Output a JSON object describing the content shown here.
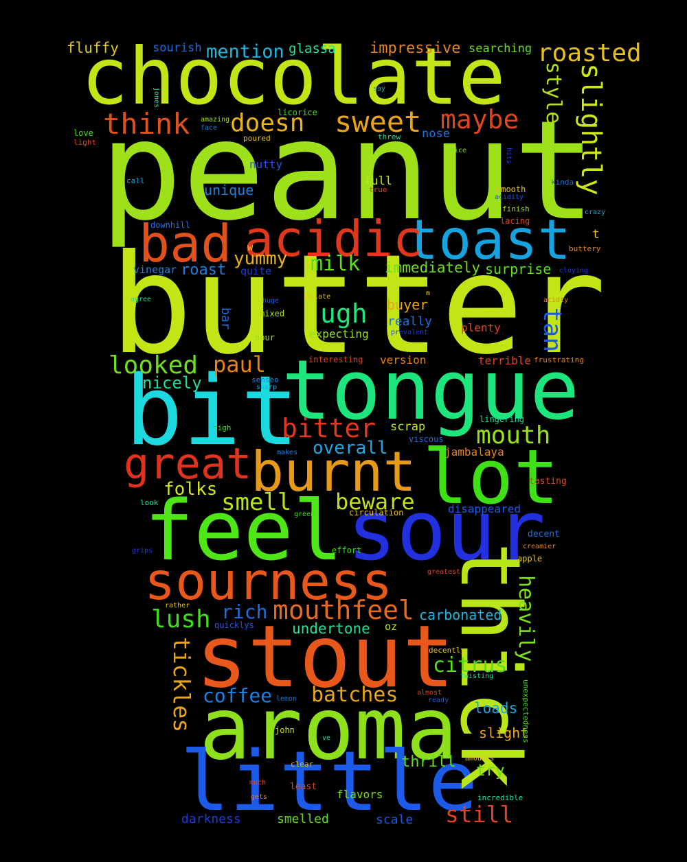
{
  "words": [
    {
      "text": "peanut",
      "color": "#9ee01a"
    },
    {
      "text": "butter",
      "color": "#c3e516"
    },
    {
      "text": "chocolate",
      "color": "#c3e516"
    },
    {
      "text": "tongue",
      "color": "#1de67c"
    },
    {
      "text": "bit",
      "color": "#1cd9e0"
    },
    {
      "text": "feel",
      "color": "#4ee617"
    },
    {
      "text": "sour",
      "color": "#2230e0"
    },
    {
      "text": "stout",
      "color": "#e8581a"
    },
    {
      "text": "aroma",
      "color": "#8fe01c"
    },
    {
      "text": "little",
      "color": "#1c5ae8"
    },
    {
      "text": "thick",
      "color": "#b9e617"
    },
    {
      "text": "sourness",
      "color": "#e8581a"
    },
    {
      "text": "toast",
      "color": "#17a3e0"
    },
    {
      "text": "acidic",
      "color": "#e0381c"
    },
    {
      "text": "bad",
      "color": "#e0521a"
    },
    {
      "text": "burnt",
      "color": "#e89a17"
    },
    {
      "text": "lot",
      "color": "#40e017"
    },
    {
      "text": "great",
      "color": "#e0321c"
    },
    {
      "text": "mouthfeel",
      "color": "#e86a1a"
    },
    {
      "text": "sweet",
      "color": "#e8a51a"
    },
    {
      "text": "think",
      "color": "#e0521a"
    },
    {
      "text": "doesn",
      "color": "#e8b41a"
    },
    {
      "text": "maybe",
      "color": "#e0451c"
    },
    {
      "text": "roasted",
      "color": "#e8c21a"
    },
    {
      "text": "slightly",
      "color": "#cde617"
    },
    {
      "text": "style",
      "color": "#b2e017"
    },
    {
      "text": "mention",
      "color": "#1cb8e0"
    },
    {
      "text": "impressive",
      "color": "#e8841a"
    },
    {
      "text": "fluffy",
      "color": "#e0c81a"
    },
    {
      "text": "sourish",
      "color": "#1c6ae0"
    },
    {
      "text": "glassa",
      "color": "#1ce0a0"
    },
    {
      "text": "searching",
      "color": "#69e017"
    },
    {
      "text": "ugh",
      "color": "#1de67c"
    },
    {
      "text": "milk",
      "color": "#5de017"
    },
    {
      "text": "yummy",
      "color": "#e8b41a"
    },
    {
      "text": "roast",
      "color": "#1c82e0"
    },
    {
      "text": "tan",
      "color": "#1c5ae8"
    },
    {
      "text": "looked",
      "color": "#6ee017"
    },
    {
      "text": "paul",
      "color": "#e8821a"
    },
    {
      "text": "bitter",
      "color": "#e0381c"
    },
    {
      "text": "mouth",
      "color": "#99e017"
    },
    {
      "text": "overall",
      "color": "#1ca8e0"
    },
    {
      "text": "smell",
      "color": "#b9e617"
    },
    {
      "text": "beware",
      "color": "#c8e017"
    },
    {
      "text": "lush",
      "color": "#3ee017"
    },
    {
      "text": "rich",
      "color": "#1c70e0"
    },
    {
      "text": "heavily",
      "color": "#7ee017"
    },
    {
      "text": "tickles",
      "color": "#e8a51a"
    },
    {
      "text": "citrus",
      "color": "#57e017"
    },
    {
      "text": "coffee",
      "color": "#1c82e0"
    },
    {
      "text": "batches",
      "color": "#e8a51a"
    },
    {
      "text": "undertone",
      "color": "#1ce0a0"
    },
    {
      "text": "carbonated",
      "color": "#1cb8e0"
    },
    {
      "text": "still",
      "color": "#e0451c"
    },
    {
      "text": "nicely",
      "color": "#1ce0a0"
    },
    {
      "text": "folks",
      "color": "#d6e617"
    },
    {
      "text": "thrill",
      "color": "#5de017"
    },
    {
      "text": "try",
      "color": "#6ee017"
    },
    {
      "text": "loads",
      "color": "#1ca8e0"
    },
    {
      "text": "slight",
      "color": "#e8a51a"
    },
    {
      "text": "darkness",
      "color": "#1c3ce0"
    },
    {
      "text": "smelled",
      "color": "#5de017"
    },
    {
      "text": "scale",
      "color": "#1c5ae8"
    },
    {
      "text": "flavors",
      "color": "#7ee017"
    },
    {
      "text": "immediately",
      "color": "#6ee017"
    },
    {
      "text": "surprise",
      "color": "#5de017"
    },
    {
      "text": "unique",
      "color": "#1c82e0"
    },
    {
      "text": "nutty",
      "color": "#1c5ae8"
    },
    {
      "text": "full",
      "color": "#b9e617"
    },
    {
      "text": "nose",
      "color": "#1c70e0"
    },
    {
      "text": "buyer",
      "color": "#e8a51a"
    },
    {
      "text": "really",
      "color": "#1c70e0"
    },
    {
      "text": "expecting",
      "color": "#99e017"
    },
    {
      "text": "plenty",
      "color": "#e0451c"
    },
    {
      "text": "version",
      "color": "#e8821a"
    },
    {
      "text": "terrible",
      "color": "#e0451c"
    },
    {
      "text": "scrap",
      "color": "#c8e017"
    },
    {
      "text": "jambalaya",
      "color": "#e8821a"
    },
    {
      "text": "disappeared",
      "color": "#1c5ae8"
    },
    {
      "text": "bar",
      "color": "#1c70e0"
    },
    {
      "text": "t",
      "color": "#e8c21a"
    },
    {
      "text": "w",
      "color": "#e8c21a"
    },
    {
      "text": "quite",
      "color": "#1c3ce0"
    },
    {
      "text": "vinegar",
      "color": "#1c82e0"
    },
    {
      "text": "mixed",
      "color": "#a5e017"
    },
    {
      "text": "pour",
      "color": "#a5e017"
    },
    {
      "text": "oz",
      "color": "#b9e617"
    },
    {
      "text": "jones",
      "color": "#1ce0a0"
    },
    {
      "text": "say",
      "color": "#1ca8e0"
    },
    {
      "text": "amazing",
      "color": "#a5e017"
    },
    {
      "text": "face",
      "color": "#1c82e0"
    },
    {
      "text": "licorice",
      "color": "#3ee017"
    },
    {
      "text": "threw",
      "color": "#1ce0a0"
    },
    {
      "text": "poured",
      "color": "#e8c21a"
    },
    {
      "text": "love",
      "color": "#3ee017"
    },
    {
      "text": "light",
      "color": "#e0451c"
    },
    {
      "text": "call",
      "color": "#1ca8e0"
    },
    {
      "text": "nice",
      "color": "#7ee017"
    },
    {
      "text": "hits",
      "color": "#1c3ce0"
    },
    {
      "text": "smooth",
      "color": "#e8c21a"
    },
    {
      "text": "kinda",
      "color": "#1c70e0"
    },
    {
      "text": "acidity",
      "color": "#1c5ae8"
    },
    {
      "text": "true",
      "color": "#e0451c"
    },
    {
      "text": "finish",
      "color": "#a5e017"
    },
    {
      "text": "crazy",
      "color": "#1ca8e0"
    },
    {
      "text": "downhill",
      "color": "#1c70e0"
    },
    {
      "text": "lacing",
      "color": "#e0451c"
    },
    {
      "text": "buttery",
      "color": "#e8841a"
    },
    {
      "text": "cloying",
      "color": "#1c3ce0"
    },
    {
      "text": "agree",
      "color": "#1ce0a0"
    },
    {
      "text": "huge",
      "color": "#1c5ae8"
    },
    {
      "text": "palate",
      "color": "#e8c21a"
    },
    {
      "text": "m",
      "color": "#e8c21a"
    },
    {
      "text": "acidty",
      "color": "#e8841a"
    },
    {
      "text": "prevalent",
      "color": "#1c3ce0"
    },
    {
      "text": "interesting",
      "color": "#e0451c"
    },
    {
      "text": "frustrating",
      "color": "#e8821a"
    },
    {
      "text": "senseo",
      "color": "#1c82e0"
    },
    {
      "text": "sharp",
      "color": "#1ca8e0"
    },
    {
      "text": "lingering",
      "color": "#1ce0a0"
    },
    {
      "text": "high",
      "color": "#3ee017"
    },
    {
      "text": "viscous",
      "color": "#1c70e0"
    },
    {
      "text": "makes",
      "color": "#1c82e0"
    },
    {
      "text": "tasting",
      "color": "#e0451c"
    },
    {
      "text": "look",
      "color": "#1ce0a0"
    },
    {
      "text": "green",
      "color": "#3ee017"
    },
    {
      "text": "circulation",
      "color": "#e8c21a"
    },
    {
      "text": "decent",
      "color": "#1c70e0"
    },
    {
      "text": "grips",
      "color": "#1c3ce0"
    },
    {
      "text": "effort",
      "color": "#3ee017"
    },
    {
      "text": "creamier",
      "color": "#e8821a"
    },
    {
      "text": "apple",
      "color": "#e8c21a"
    },
    {
      "text": "greatest",
      "color": "#e0451c"
    },
    {
      "text": "rather",
      "color": "#e8c21a"
    },
    {
      "text": "quicklys",
      "color": "#1c5ae8"
    },
    {
      "text": "decently",
      "color": "#e8c21a"
    },
    {
      "text": "twisting",
      "color": "#1ce0a0"
    },
    {
      "text": "unexpectedness",
      "color": "#3ee017"
    },
    {
      "text": "lemon",
      "color": "#1c70e0"
    },
    {
      "text": "almost",
      "color": "#e0451c"
    },
    {
      "text": "ready",
      "color": "#1c5ae8"
    },
    {
      "text": "john",
      "color": "#c8e017"
    },
    {
      "text": "ve",
      "color": "#1ce0a0"
    },
    {
      "text": "amounts",
      "color": "#e8c21a"
    },
    {
      "text": "clear",
      "color": "#e8c21a"
    },
    {
      "text": "much",
      "color": "#e0451c"
    },
    {
      "text": "gets",
      "color": "#e8821a"
    },
    {
      "text": "least",
      "color": "#e0451c"
    },
    {
      "text": "incredible",
      "color": "#1ce0a0"
    }
  ]
}
